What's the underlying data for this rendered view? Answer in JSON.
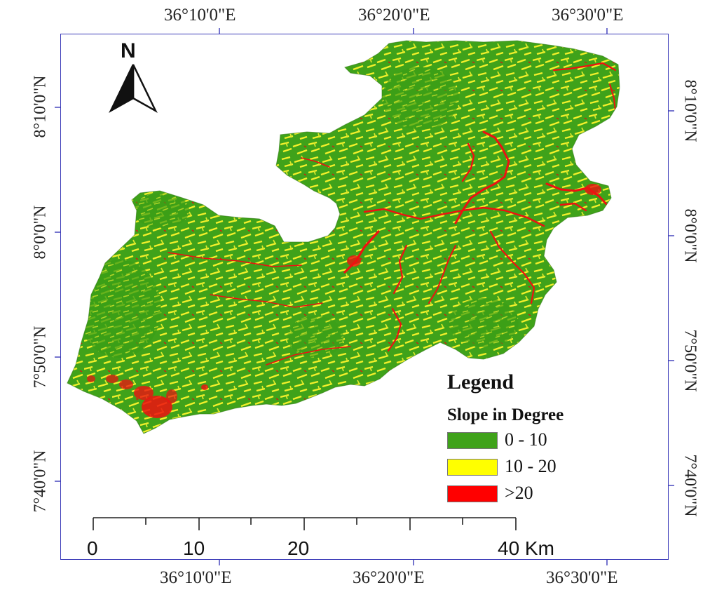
{
  "map": {
    "graticule": {
      "top_labels": [
        "36°10'0\"E",
        "36°20'0\"E",
        "36°30'0\"E"
      ],
      "bottom_labels": [
        "36°10'0\"E",
        "36°20'0\"E",
        "36°30'0\"E"
      ],
      "left_labels": [
        "8°10'0\"N",
        "8°0'0\"N",
        "7°50'0\"N",
        "7°40'0\"N"
      ],
      "right_labels": [
        "8°10'0\"N",
        "8°0'0\"N",
        "7°50'0\"N",
        "7°40'0\"N"
      ]
    },
    "north_arrow": {
      "letter": "N",
      "icon": "north-arrow-icon"
    },
    "legend": {
      "title": "Legend",
      "subtitle": "Slope in Degree",
      "items": [
        {
          "label": "0 - 10",
          "color": "#3fa21a"
        },
        {
          "label": "10 - 20",
          "color": "#ffff00"
        },
        {
          "label": ">20",
          "color": "#ff0000"
        }
      ]
    },
    "scale_bar": {
      "labels": [
        "0",
        "10",
        "20",
        "40 Km"
      ],
      "unit": "Km"
    }
  }
}
